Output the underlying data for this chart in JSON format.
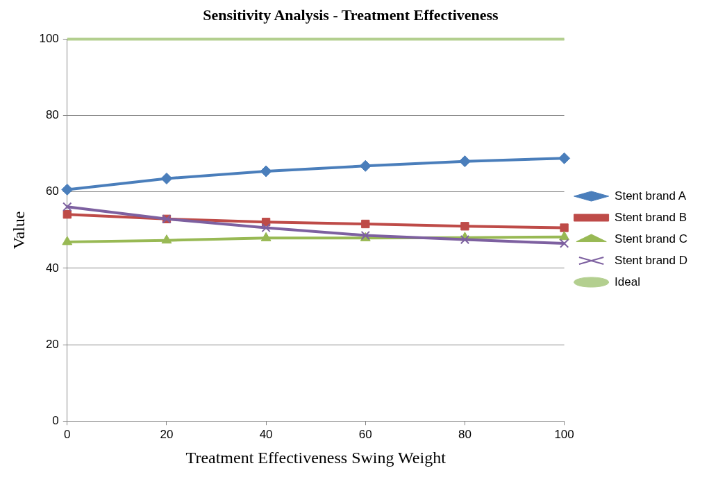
{
  "chart_data": {
    "type": "line",
    "title": "Sensitivity Analysis - Treatment Effectiveness",
    "xlabel": "Treatment Effectiveness Swing Weight",
    "ylabel": "Value",
    "x": [
      0,
      20,
      40,
      60,
      80,
      100
    ],
    "series": [
      {
        "name": "Stent brand A",
        "color": "#4a7ebb",
        "marker": "diamond",
        "values": [
          60.6,
          63.5,
          65.4,
          66.8,
          68.0,
          68.8
        ]
      },
      {
        "name": "Stent brand B",
        "color": "#be4b48",
        "marker": "square",
        "values": [
          54.1,
          52.9,
          52.1,
          51.6,
          51.0,
          50.6
        ]
      },
      {
        "name": "Stent brand C",
        "color": "#98b954",
        "marker": "triangle",
        "values": [
          46.9,
          47.3,
          47.9,
          47.9,
          48.0,
          48.2
        ]
      },
      {
        "name": "Stent brand D",
        "color": "#7d60a0",
        "marker": "cross",
        "values": [
          56.1,
          52.9,
          50.6,
          48.6,
          47.5,
          46.5
        ]
      },
      {
        "name": "Ideal",
        "color": "#b3cf8f",
        "marker": "none",
        "values": [
          100,
          100,
          100,
          100,
          100,
          100
        ]
      }
    ],
    "xlim": [
      0,
      100
    ],
    "xticks": [
      0,
      20,
      40,
      60,
      80,
      100
    ],
    "ylim": [
      0,
      100
    ],
    "yticks": [
      0,
      20,
      40,
      60,
      80,
      100
    ],
    "grid": "y",
    "legend": "right",
    "line_style": "solid"
  }
}
